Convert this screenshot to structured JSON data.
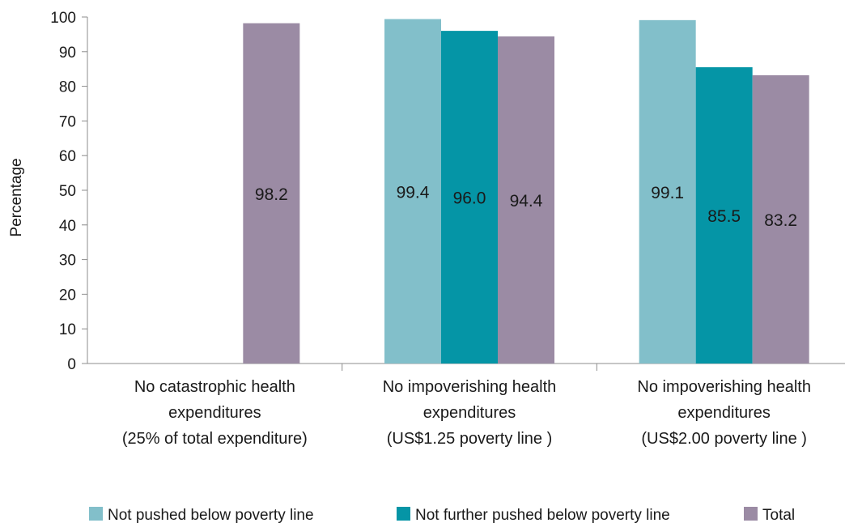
{
  "chart_data": {
    "type": "bar",
    "ylabel": "Percentage",
    "ylim": [
      0,
      100
    ],
    "yticks": [
      0,
      10,
      20,
      30,
      40,
      50,
      60,
      70,
      80,
      90,
      100
    ],
    "categories": [
      [
        "No catastrophic health",
        "expenditures",
        "(25% of total expenditure)"
      ],
      [
        "No impoverishing health",
        "expenditures",
        "(US$1.25 poverty line )"
      ],
      [
        "No impoverishing health",
        "expenditures",
        "(US$2.00 poverty line )"
      ]
    ],
    "series": [
      {
        "name": "Not pushed below poverty line",
        "color": "#82bfca",
        "values": [
          null,
          99.4,
          99.1
        ],
        "labels": [
          "",
          "99.4",
          "99.1"
        ]
      },
      {
        "name": "Not further pushed below poverty line",
        "color": "#0595a6",
        "values": [
          null,
          96.0,
          85.5
        ],
        "labels": [
          "",
          "96.0",
          "85.5"
        ]
      },
      {
        "name": "Total",
        "color": "#9b8ba4",
        "values": [
          98.2,
          94.4,
          83.2
        ],
        "labels": [
          "98.2",
          "94.4",
          "83.2"
        ]
      }
    ],
    "grid": false,
    "legend_position": "bottom"
  }
}
